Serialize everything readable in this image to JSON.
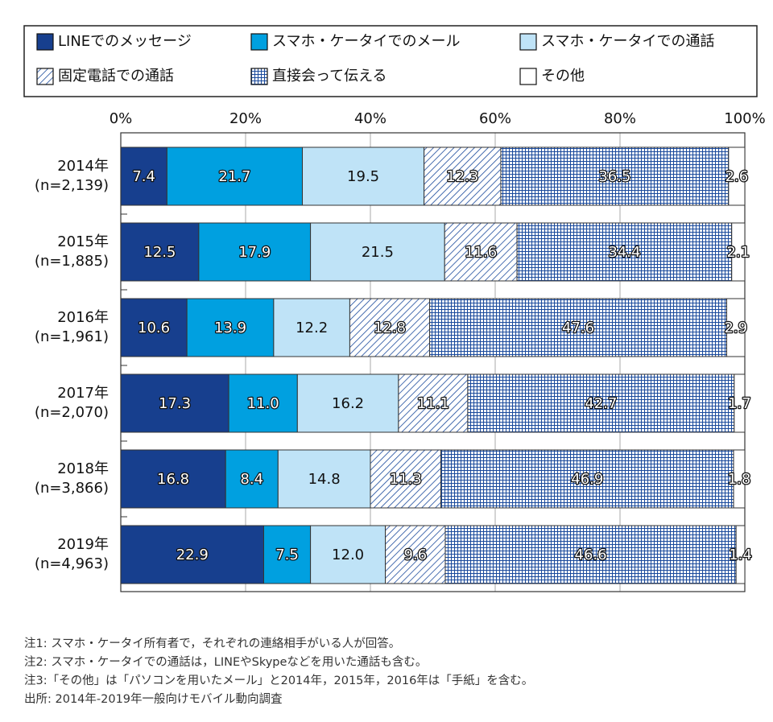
{
  "chart_data": {
    "type": "stacked-barh",
    "categories": [
      "2014年",
      "2015年",
      "2016年",
      "2017年",
      "2018年",
      "2019年"
    ],
    "sample_sizes": [
      "(n=2,139)",
      "(n=1,885)",
      "(n=1,961)",
      "(n=2,070)",
      "(n=3,866)",
      "(n=4,963)"
    ],
    "series": [
      {
        "name": "LINEでのメッセージ",
        "color": "#173f8e",
        "values": [
          7.4,
          12.5,
          10.6,
          17.3,
          16.8,
          22.9
        ]
      },
      {
        "name": "スマホ・ケータイでのメール",
        "color": "#00a0e0",
        "values": [
          21.7,
          17.9,
          13.9,
          11.0,
          8.4,
          7.5
        ],
        "value_labels": [
          "21.7",
          "17.9",
          "13.9",
          "11.0",
          "8.4",
          "7.5"
        ]
      },
      {
        "name": "スマホ・ケータイでの通話",
        "color": "#bfe3f7",
        "values": [
          19.5,
          21.5,
          12.2,
          16.2,
          14.8,
          12.0
        ],
        "value_labels": [
          "19.5",
          "21.5",
          "12.2",
          "16.2",
          "14.8",
          "12.0"
        ]
      },
      {
        "name": "固定電話での通話",
        "color": "#1a4a9c",
        "pattern": "hatch",
        "values": [
          12.3,
          11.6,
          12.8,
          11.1,
          11.3,
          9.6
        ]
      },
      {
        "name": "直接会って伝える",
        "color": "#1a4a9c",
        "pattern": "grid",
        "values": [
          36.5,
          34.4,
          47.6,
          42.7,
          46.9,
          46.6
        ]
      },
      {
        "name": "その他",
        "color": "#ffffff",
        "values": [
          2.6,
          2.1,
          2.9,
          1.7,
          1.8,
          1.4
        ]
      }
    ],
    "xlim": [
      0,
      100
    ],
    "xticks": [
      {
        "value": 0,
        "label": "0%"
      },
      {
        "value": 20,
        "label": "20%"
      },
      {
        "value": 40,
        "label": "40%"
      },
      {
        "value": 60,
        "label": "60%"
      },
      {
        "value": 80,
        "label": "80%"
      },
      {
        "value": 100,
        "label": "100%"
      }
    ],
    "grid": true,
    "legend": "top",
    "notes": [
      "注1: スマホ・ケータイ所有者で，それぞれの連絡相手がいる人が回答。",
      "注2: スマホ・ケータイでの通話は，LINEやSkypeなどを用いた通話も含む。",
      "注3:「その他」は「パソコンを用いたメール」と2014年，2015年，2016年は「手紙」を含む。",
      "出所: 2014年-2019年一般向けモバイル動向調査"
    ]
  }
}
